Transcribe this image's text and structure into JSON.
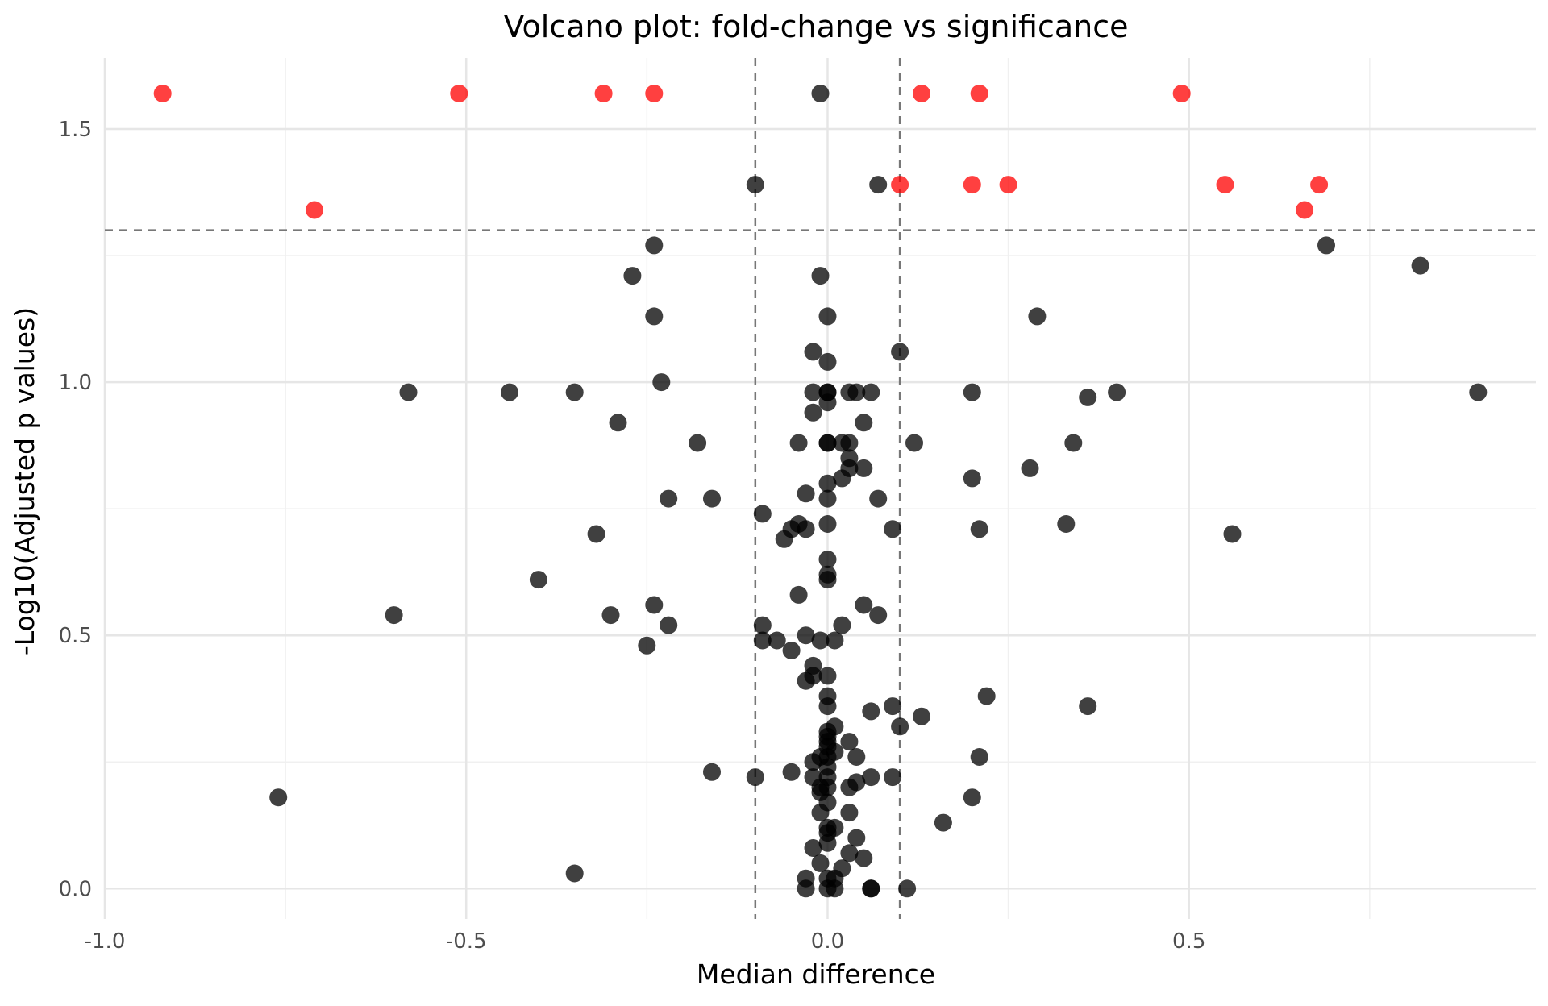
{
  "chart_data": {
    "type": "scatter",
    "title": "Volcano plot: fold-change vs significance",
    "xlabel": "Median difference",
    "ylabel": "-Log10(Adjusted p values)",
    "xlim": [
      -1.0,
      0.98
    ],
    "ylim": [
      -0.06,
      1.64
    ],
    "x_ticks": [
      -1.0,
      -0.5,
      0.0,
      0.5
    ],
    "x_tick_labels": [
      "-1.0",
      "-0.5",
      "0.0",
      "0.5"
    ],
    "x_minor_ticks": [
      -0.75,
      -0.25,
      0.25,
      0.75
    ],
    "y_ticks": [
      0.0,
      0.5,
      1.0,
      1.5
    ],
    "y_tick_labels": [
      "0.0",
      "0.5",
      "1.0",
      "1.5"
    ],
    "y_minor_ticks": [
      0.25,
      0.75,
      1.25
    ],
    "grid": true,
    "legend": "none",
    "thresholds": {
      "x": [
        -0.1,
        0.1
      ],
      "y": 1.3
    },
    "colors": {
      "significant": "#ff0000",
      "not_significant": "#000000"
    },
    "series": [
      {
        "color": "#ff0000",
        "points": [
          [
            -0.92,
            1.57
          ],
          [
            -0.51,
            1.57
          ],
          [
            -0.31,
            1.57
          ],
          [
            -0.24,
            1.57
          ],
          [
            0.13,
            1.57
          ],
          [
            0.21,
            1.57
          ],
          [
            0.49,
            1.57
          ],
          [
            0.1,
            1.39
          ],
          [
            0.2,
            1.39
          ],
          [
            0.25,
            1.39
          ],
          [
            0.55,
            1.39
          ],
          [
            0.68,
            1.39
          ],
          [
            -0.71,
            1.34
          ],
          [
            0.66,
            1.34
          ]
        ]
      },
      {
        "color": "#000000",
        "points": [
          [
            -0.01,
            1.57
          ],
          [
            -0.1,
            1.39
          ],
          [
            0.07,
            1.39
          ],
          [
            -0.24,
            1.27
          ],
          [
            0.69,
            1.27
          ],
          [
            0.82,
            1.23
          ],
          [
            -0.27,
            1.21
          ],
          [
            -0.01,
            1.21
          ],
          [
            -0.24,
            1.13
          ],
          [
            0.0,
            1.13
          ],
          [
            0.29,
            1.13
          ],
          [
            -0.02,
            1.06
          ],
          [
            0.1,
            1.06
          ],
          [
            0.0,
            1.04
          ],
          [
            -0.23,
            1.0
          ],
          [
            -0.58,
            0.98
          ],
          [
            -0.44,
            0.98
          ],
          [
            -0.35,
            0.98
          ],
          [
            -0.02,
            0.98
          ],
          [
            0.0,
            0.98
          ],
          [
            0.0,
            0.98
          ],
          [
            0.03,
            0.98
          ],
          [
            0.04,
            0.98
          ],
          [
            0.06,
            0.98
          ],
          [
            0.2,
            0.98
          ],
          [
            0.4,
            0.98
          ],
          [
            0.9,
            0.98
          ],
          [
            0.36,
            0.97
          ],
          [
            0.0,
            0.96
          ],
          [
            -0.02,
            0.94
          ],
          [
            0.05,
            0.92
          ],
          [
            -0.29,
            0.92
          ],
          [
            -0.18,
            0.88
          ],
          [
            -0.04,
            0.88
          ],
          [
            0.0,
            0.88
          ],
          [
            0.0,
            0.88
          ],
          [
            0.02,
            0.88
          ],
          [
            0.03,
            0.88
          ],
          [
            0.12,
            0.88
          ],
          [
            0.34,
            0.88
          ],
          [
            0.03,
            0.85
          ],
          [
            0.03,
            0.83
          ],
          [
            0.05,
            0.83
          ],
          [
            0.28,
            0.83
          ],
          [
            0.02,
            0.81
          ],
          [
            0.2,
            0.81
          ],
          [
            0.0,
            0.8
          ],
          [
            -0.03,
            0.78
          ],
          [
            -0.22,
            0.77
          ],
          [
            -0.16,
            0.77
          ],
          [
            0.0,
            0.77
          ],
          [
            0.07,
            0.77
          ],
          [
            -0.09,
            0.74
          ],
          [
            -0.04,
            0.72
          ],
          [
            0.0,
            0.72
          ],
          [
            0.33,
            0.72
          ],
          [
            -0.05,
            0.71
          ],
          [
            -0.03,
            0.71
          ],
          [
            0.09,
            0.71
          ],
          [
            0.21,
            0.71
          ],
          [
            -0.32,
            0.7
          ],
          [
            0.56,
            0.7
          ],
          [
            -0.06,
            0.69
          ],
          [
            0.0,
            0.65
          ],
          [
            0.0,
            0.62
          ],
          [
            0.0,
            0.61
          ],
          [
            -0.4,
            0.61
          ],
          [
            -0.04,
            0.58
          ],
          [
            -0.24,
            0.56
          ],
          [
            0.05,
            0.56
          ],
          [
            -0.6,
            0.54
          ],
          [
            -0.3,
            0.54
          ],
          [
            0.07,
            0.54
          ],
          [
            -0.22,
            0.52
          ],
          [
            -0.09,
            0.52
          ],
          [
            0.02,
            0.52
          ],
          [
            -0.03,
            0.5
          ],
          [
            -0.09,
            0.49
          ],
          [
            -0.07,
            0.49
          ],
          [
            -0.01,
            0.49
          ],
          [
            0.01,
            0.49
          ],
          [
            -0.25,
            0.48
          ],
          [
            -0.05,
            0.47
          ],
          [
            -0.02,
            0.44
          ],
          [
            -0.02,
            0.42
          ],
          [
            0.0,
            0.42
          ],
          [
            -0.03,
            0.41
          ],
          [
            0.22,
            0.38
          ],
          [
            0.0,
            0.38
          ],
          [
            0.0,
            0.36
          ],
          [
            0.09,
            0.36
          ],
          [
            0.36,
            0.36
          ],
          [
            0.06,
            0.35
          ],
          [
            0.13,
            0.34
          ],
          [
            0.01,
            0.32
          ],
          [
            0.1,
            0.32
          ],
          [
            0.0,
            0.31
          ],
          [
            0.0,
            0.3
          ],
          [
            0.0,
            0.29
          ],
          [
            0.03,
            0.29
          ],
          [
            0.0,
            0.28
          ],
          [
            0.01,
            0.27
          ],
          [
            0.21,
            0.26
          ],
          [
            -0.01,
            0.26
          ],
          [
            0.0,
            0.26
          ],
          [
            0.04,
            0.26
          ],
          [
            -0.02,
            0.25
          ],
          [
            0.0,
            0.24
          ],
          [
            -0.16,
            0.23
          ],
          [
            -0.05,
            0.23
          ],
          [
            -0.1,
            0.22
          ],
          [
            -0.02,
            0.22
          ],
          [
            0.0,
            0.22
          ],
          [
            0.06,
            0.22
          ],
          [
            0.09,
            0.22
          ],
          [
            0.04,
            0.21
          ],
          [
            -0.01,
            0.2
          ],
          [
            0.0,
            0.2
          ],
          [
            0.03,
            0.2
          ],
          [
            -0.01,
            0.19
          ],
          [
            -0.76,
            0.18
          ],
          [
            0.2,
            0.18
          ],
          [
            0.0,
            0.17
          ],
          [
            -0.01,
            0.15
          ],
          [
            0.03,
            0.15
          ],
          [
            0.16,
            0.13
          ],
          [
            0.0,
            0.12
          ],
          [
            0.01,
            0.12
          ],
          [
            0.0,
            0.11
          ],
          [
            0.04,
            0.1
          ],
          [
            0.0,
            0.09
          ],
          [
            -0.02,
            0.08
          ],
          [
            0.03,
            0.07
          ],
          [
            0.05,
            0.06
          ],
          [
            -0.01,
            0.05
          ],
          [
            0.02,
            0.04
          ],
          [
            -0.35,
            0.03
          ],
          [
            -0.03,
            0.02
          ],
          [
            0.0,
            0.02
          ],
          [
            0.01,
            0.02
          ],
          [
            -0.03,
            0.0
          ],
          [
            0.0,
            0.0
          ],
          [
            0.01,
            0.0
          ],
          [
            0.06,
            0.0
          ],
          [
            0.06,
            0.0
          ],
          [
            0.11,
            0.0
          ]
        ]
      }
    ]
  }
}
